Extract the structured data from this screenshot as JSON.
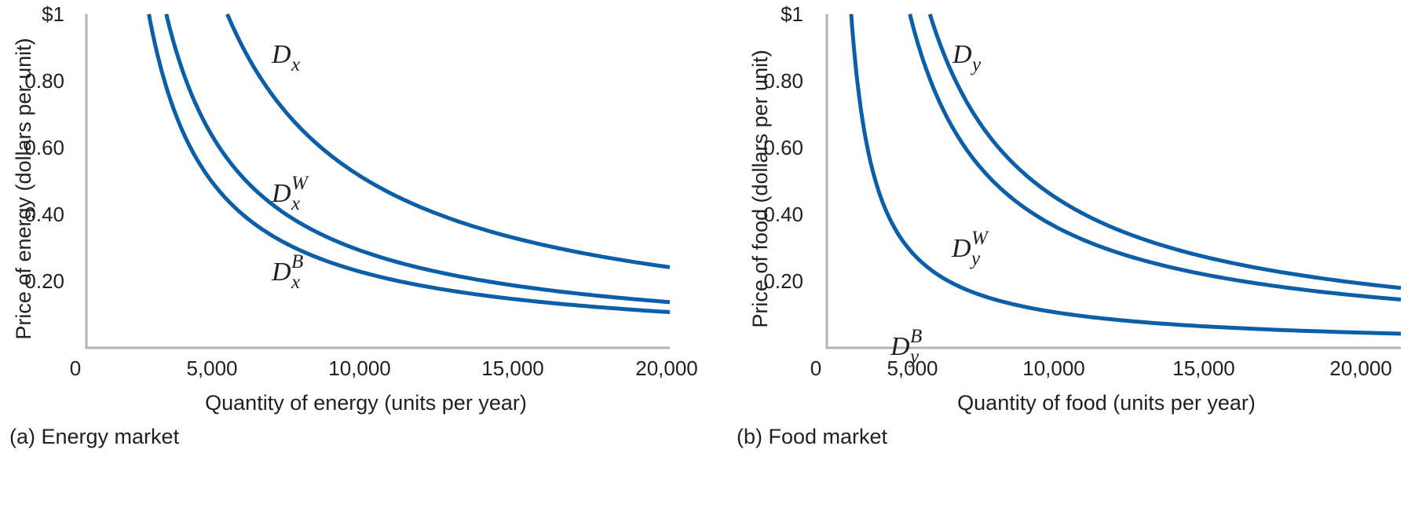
{
  "chart_data": [
    {
      "type": "line",
      "caption": "(a) Energy market",
      "xlabel": "Quantity of energy (units per year)",
      "ylabel": "Price of energy (dollars per unit)",
      "xlim": [
        0,
        20000
      ],
      "ylim": [
        0,
        1
      ],
      "x_ticks": [
        {
          "value": 0,
          "label": "0"
        },
        {
          "value": 5000,
          "label": "5,000"
        },
        {
          "value": 10000,
          "label": "10,000"
        },
        {
          "value": 15000,
          "label": "15,000"
        },
        {
          "value": 20000,
          "label": "20,000"
        }
      ],
      "y_ticks": [
        {
          "value": 0.2,
          "label": "0.20"
        },
        {
          "value": 0.4,
          "label": "0.40"
        },
        {
          "value": 0.6,
          "label": "0.60"
        },
        {
          "value": 0.8,
          "label": "0.80"
        },
        {
          "value": 1.0,
          "label": "$1"
        }
      ],
      "series": [
        {
          "name": "Dx",
          "label": {
            "base": "D",
            "sub": "x",
            "sup": ""
          },
          "color": "#0b5fa8",
          "k": 4850
        },
        {
          "name": "Dx^W",
          "label": {
            "base": "D",
            "sub": "x",
            "sup": "W"
          },
          "color": "#0b5fa8",
          "k": 2750
        },
        {
          "name": "Dx^B",
          "label": {
            "base": "D",
            "sub": "x",
            "sup": "B"
          },
          "color": "#0b5fa8",
          "k": 2150
        }
      ]
    },
    {
      "type": "line",
      "caption": "(b) Food market",
      "xlabel": "Quantity of food (units per year)",
      "ylabel": "Price of food (dollars per unit)",
      "xlim": [
        0,
        20000
      ],
      "ylim": [
        0,
        1
      ],
      "x_ticks": [
        {
          "value": 0,
          "label": "0"
        },
        {
          "value": 5000,
          "label": "5,000"
        },
        {
          "value": 10000,
          "label": "10,000"
        },
        {
          "value": 15000,
          "label": "15,000"
        },
        {
          "value": 20000,
          "label": "20,000"
        }
      ],
      "y_ticks": [
        {
          "value": 0.2,
          "label": "0.20"
        },
        {
          "value": 0.4,
          "label": "0.40"
        },
        {
          "value": 0.6,
          "label": "0.60"
        },
        {
          "value": 0.8,
          "label": "0.80"
        },
        {
          "value": 1.0,
          "label": "$1"
        }
      ],
      "series": [
        {
          "name": "Dy",
          "label": {
            "base": "D",
            "sub": "y",
            "sup": ""
          },
          "color": "#0b5fa8",
          "k": 3600
        },
        {
          "name": "Dy^W",
          "label": {
            "base": "D",
            "sub": "y",
            "sup": "W"
          },
          "color": "#0b5fa8",
          "k": 2900
        },
        {
          "name": "Dy^B",
          "label": {
            "base": "D",
            "sub": "y",
            "sup": "B"
          },
          "color": "#0b5fa8",
          "k": 850
        }
      ]
    }
  ]
}
